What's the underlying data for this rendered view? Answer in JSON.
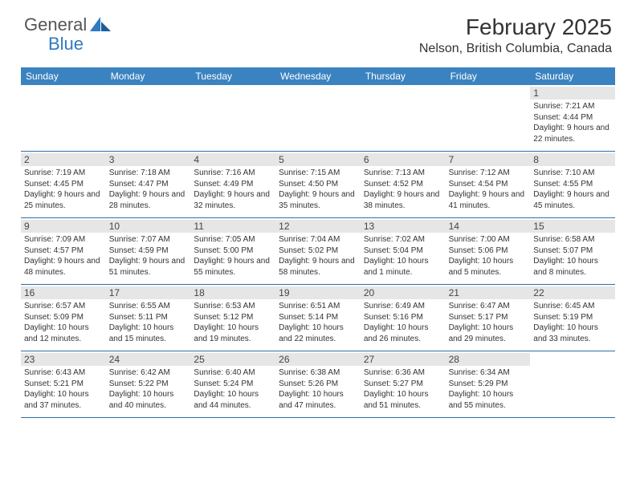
{
  "logo": {
    "text1": "General",
    "text2": "Blue"
  },
  "title": "February 2025",
  "location": "Nelson, British Columbia, Canada",
  "colors": {
    "header_bg": "#3b83c0",
    "header_text": "#ffffff",
    "daynum_bg": "#e6e6e6",
    "border": "#2f6fa8",
    "logo_blue": "#2f7bbf"
  },
  "day_names": [
    "Sunday",
    "Monday",
    "Tuesday",
    "Wednesday",
    "Thursday",
    "Friday",
    "Saturday"
  ],
  "weeks": [
    [
      {
        "n": "",
        "sr": "",
        "ss": "",
        "dl": ""
      },
      {
        "n": "",
        "sr": "",
        "ss": "",
        "dl": ""
      },
      {
        "n": "",
        "sr": "",
        "ss": "",
        "dl": ""
      },
      {
        "n": "",
        "sr": "",
        "ss": "",
        "dl": ""
      },
      {
        "n": "",
        "sr": "",
        "ss": "",
        "dl": ""
      },
      {
        "n": "",
        "sr": "",
        "ss": "",
        "dl": ""
      },
      {
        "n": "1",
        "sr": "Sunrise: 7:21 AM",
        "ss": "Sunset: 4:44 PM",
        "dl": "Daylight: 9 hours and 22 minutes."
      }
    ],
    [
      {
        "n": "2",
        "sr": "Sunrise: 7:19 AM",
        "ss": "Sunset: 4:45 PM",
        "dl": "Daylight: 9 hours and 25 minutes."
      },
      {
        "n": "3",
        "sr": "Sunrise: 7:18 AM",
        "ss": "Sunset: 4:47 PM",
        "dl": "Daylight: 9 hours and 28 minutes."
      },
      {
        "n": "4",
        "sr": "Sunrise: 7:16 AM",
        "ss": "Sunset: 4:49 PM",
        "dl": "Daylight: 9 hours and 32 minutes."
      },
      {
        "n": "5",
        "sr": "Sunrise: 7:15 AM",
        "ss": "Sunset: 4:50 PM",
        "dl": "Daylight: 9 hours and 35 minutes."
      },
      {
        "n": "6",
        "sr": "Sunrise: 7:13 AM",
        "ss": "Sunset: 4:52 PM",
        "dl": "Daylight: 9 hours and 38 minutes."
      },
      {
        "n": "7",
        "sr": "Sunrise: 7:12 AM",
        "ss": "Sunset: 4:54 PM",
        "dl": "Daylight: 9 hours and 41 minutes."
      },
      {
        "n": "8",
        "sr": "Sunrise: 7:10 AM",
        "ss": "Sunset: 4:55 PM",
        "dl": "Daylight: 9 hours and 45 minutes."
      }
    ],
    [
      {
        "n": "9",
        "sr": "Sunrise: 7:09 AM",
        "ss": "Sunset: 4:57 PM",
        "dl": "Daylight: 9 hours and 48 minutes."
      },
      {
        "n": "10",
        "sr": "Sunrise: 7:07 AM",
        "ss": "Sunset: 4:59 PM",
        "dl": "Daylight: 9 hours and 51 minutes."
      },
      {
        "n": "11",
        "sr": "Sunrise: 7:05 AM",
        "ss": "Sunset: 5:00 PM",
        "dl": "Daylight: 9 hours and 55 minutes."
      },
      {
        "n": "12",
        "sr": "Sunrise: 7:04 AM",
        "ss": "Sunset: 5:02 PM",
        "dl": "Daylight: 9 hours and 58 minutes."
      },
      {
        "n": "13",
        "sr": "Sunrise: 7:02 AM",
        "ss": "Sunset: 5:04 PM",
        "dl": "Daylight: 10 hours and 1 minute."
      },
      {
        "n": "14",
        "sr": "Sunrise: 7:00 AM",
        "ss": "Sunset: 5:06 PM",
        "dl": "Daylight: 10 hours and 5 minutes."
      },
      {
        "n": "15",
        "sr": "Sunrise: 6:58 AM",
        "ss": "Sunset: 5:07 PM",
        "dl": "Daylight: 10 hours and 8 minutes."
      }
    ],
    [
      {
        "n": "16",
        "sr": "Sunrise: 6:57 AM",
        "ss": "Sunset: 5:09 PM",
        "dl": "Daylight: 10 hours and 12 minutes."
      },
      {
        "n": "17",
        "sr": "Sunrise: 6:55 AM",
        "ss": "Sunset: 5:11 PM",
        "dl": "Daylight: 10 hours and 15 minutes."
      },
      {
        "n": "18",
        "sr": "Sunrise: 6:53 AM",
        "ss": "Sunset: 5:12 PM",
        "dl": "Daylight: 10 hours and 19 minutes."
      },
      {
        "n": "19",
        "sr": "Sunrise: 6:51 AM",
        "ss": "Sunset: 5:14 PM",
        "dl": "Daylight: 10 hours and 22 minutes."
      },
      {
        "n": "20",
        "sr": "Sunrise: 6:49 AM",
        "ss": "Sunset: 5:16 PM",
        "dl": "Daylight: 10 hours and 26 minutes."
      },
      {
        "n": "21",
        "sr": "Sunrise: 6:47 AM",
        "ss": "Sunset: 5:17 PM",
        "dl": "Daylight: 10 hours and 29 minutes."
      },
      {
        "n": "22",
        "sr": "Sunrise: 6:45 AM",
        "ss": "Sunset: 5:19 PM",
        "dl": "Daylight: 10 hours and 33 minutes."
      }
    ],
    [
      {
        "n": "23",
        "sr": "Sunrise: 6:43 AM",
        "ss": "Sunset: 5:21 PM",
        "dl": "Daylight: 10 hours and 37 minutes."
      },
      {
        "n": "24",
        "sr": "Sunrise: 6:42 AM",
        "ss": "Sunset: 5:22 PM",
        "dl": "Daylight: 10 hours and 40 minutes."
      },
      {
        "n": "25",
        "sr": "Sunrise: 6:40 AM",
        "ss": "Sunset: 5:24 PM",
        "dl": "Daylight: 10 hours and 44 minutes."
      },
      {
        "n": "26",
        "sr": "Sunrise: 6:38 AM",
        "ss": "Sunset: 5:26 PM",
        "dl": "Daylight: 10 hours and 47 minutes."
      },
      {
        "n": "27",
        "sr": "Sunrise: 6:36 AM",
        "ss": "Sunset: 5:27 PM",
        "dl": "Daylight: 10 hours and 51 minutes."
      },
      {
        "n": "28",
        "sr": "Sunrise: 6:34 AM",
        "ss": "Sunset: 5:29 PM",
        "dl": "Daylight: 10 hours and 55 minutes."
      },
      {
        "n": "",
        "sr": "",
        "ss": "",
        "dl": ""
      }
    ]
  ]
}
